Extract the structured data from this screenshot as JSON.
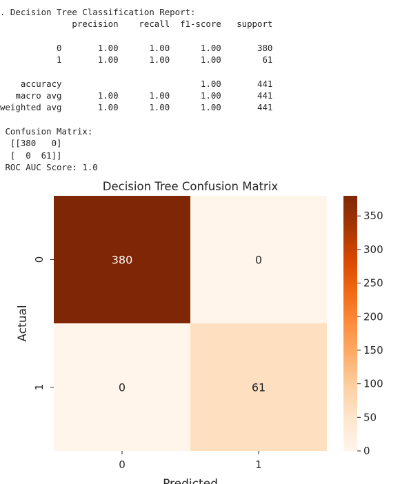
{
  "report": {
    "lines": [
      ". Decision Tree Classification Report:",
      "              precision    recall  f1-score   support",
      "",
      "           0       1.00      1.00      1.00       380",
      "           1       1.00      1.00      1.00        61",
      "",
      "    accuracy                           1.00       441",
      "   macro avg       1.00      1.00      1.00       441",
      "weighted avg       1.00      1.00      1.00       441",
      "",
      " Confusion Matrix:",
      "  [[380   0]",
      "  [  0  61]]",
      " ROC AUC Score: 1.0"
    ]
  },
  "chart_data": {
    "type": "heatmap",
    "title": "Decision Tree Confusion Matrix",
    "xlabel": "Predicted",
    "ylabel": "Actual",
    "x_categories": [
      "0",
      "1"
    ],
    "y_categories": [
      "0",
      "1"
    ],
    "values": [
      [
        380,
        0
      ],
      [
        0,
        61
      ]
    ],
    "annotations": [
      [
        "380",
        "0"
      ],
      [
        "0",
        "61"
      ]
    ],
    "colormap": "Oranges",
    "colorbar": {
      "min": 0,
      "max": 380,
      "ticks": [
        0,
        50,
        100,
        150,
        200,
        250,
        300,
        350
      ]
    }
  }
}
